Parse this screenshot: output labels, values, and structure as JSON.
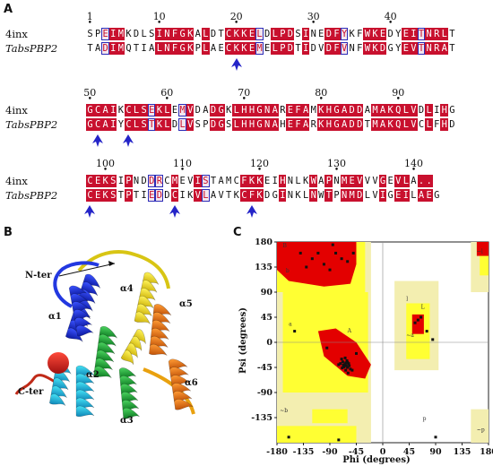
{
  "panels": {
    "a": "A",
    "b": "B",
    "c": "C"
  },
  "alignment": {
    "rows": [
      {
        "start": 1,
        "ticks": [
          1,
          10,
          20,
          30,
          40
        ],
        "seq1_label": "4inx",
        "seq2_label": "TabsPBP2",
        "seq1": "SPEIMKDLSINFGKALDTCKKELDLPDSINEDFYKFWKEDYEITNRLT",
        "seq2": "TADIMQTIALNFGKPLAECKKEMELPDTIDVDFVNFWKDGYEVTNRAT",
        "id": "...II....INFGK.L..CKKE..LPD.I..DF...FWK..YE.TNR.T",
        "sim": "..E.M.................E.....S..E.Y.........I.....",
        "arrows_at": [
          20
        ]
      },
      {
        "start": 50,
        "ticks": [
          50,
          60,
          70,
          80,
          90
        ],
        "seq1_label": "4inx",
        "seq2_label": "TabsPBP2",
        "seq1": "GCAIKCLSEKLEMVDADGKLHHGNAREFAMKHGADDAMAKQLVDLIHG",
        "seq2": "GCAIYCLSTKLDLVSPDGSLHHGNAHEFARKHGADDTMAKQLVCLFHD",
        "id": "GCAI.CLS.KL..V..DG.LHHGNA.EFA.KHGADD.MAKQLV.L.H.",
        "sim": "........E...EM..................................",
        "arrows_at": [
          51,
          55
        ]
      },
      {
        "start": 98,
        "ticks": [
          100,
          110,
          120,
          130,
          140
        ],
        "seq1_label": "4inx",
        "seq2_label": "TabsPBP2",
        "seq1": "CEKSIPNDDRCMEVISTAMCFKKEIHNLKWAPNMEVVVGEVLA..",
        "seq2": "CEKSTPTIEDDCIKVLAVTKCFKDGINKLNWTPNMDLVIGEILAEG",
        "id": "CEKS.P.....C..V.....CFK..I...L.W.PNM..V.GE.LA..",
        "sim": "........DD.....S........................V......",
        "arrows_at": [
          98,
          109,
          119
        ]
      }
    ]
  },
  "structure": {
    "labels": [
      "N-ter",
      "C-ter",
      "α1",
      "α2",
      "α3",
      "α4",
      "α5",
      "α6"
    ],
    "colors": [
      "#1a2bd6",
      "#1cc7e0",
      "#1aa038",
      "#e8d71a",
      "#f07a12",
      "#c8351a"
    ]
  },
  "ramachandran": {
    "xlabel": "Phi (degrees)",
    "ylabel": "Psi (degrees)",
    "xticks": [
      "-180",
      "-135",
      "-90",
      "-45",
      "0",
      "45",
      "90",
      "135",
      "180"
    ],
    "yticks": [
      "180",
      "135",
      "90",
      "45",
      "0",
      "-45",
      "-90",
      "-135"
    ],
    "colors": {
      "core": "#e30000",
      "allowed": "#ffff33",
      "generous": "#f3eeb0"
    },
    "region_labels": [
      "B",
      "b",
      "a",
      "A",
      "L",
      "l",
      "p",
      "~b",
      "~a",
      "~l",
      "~p"
    ]
  }
}
